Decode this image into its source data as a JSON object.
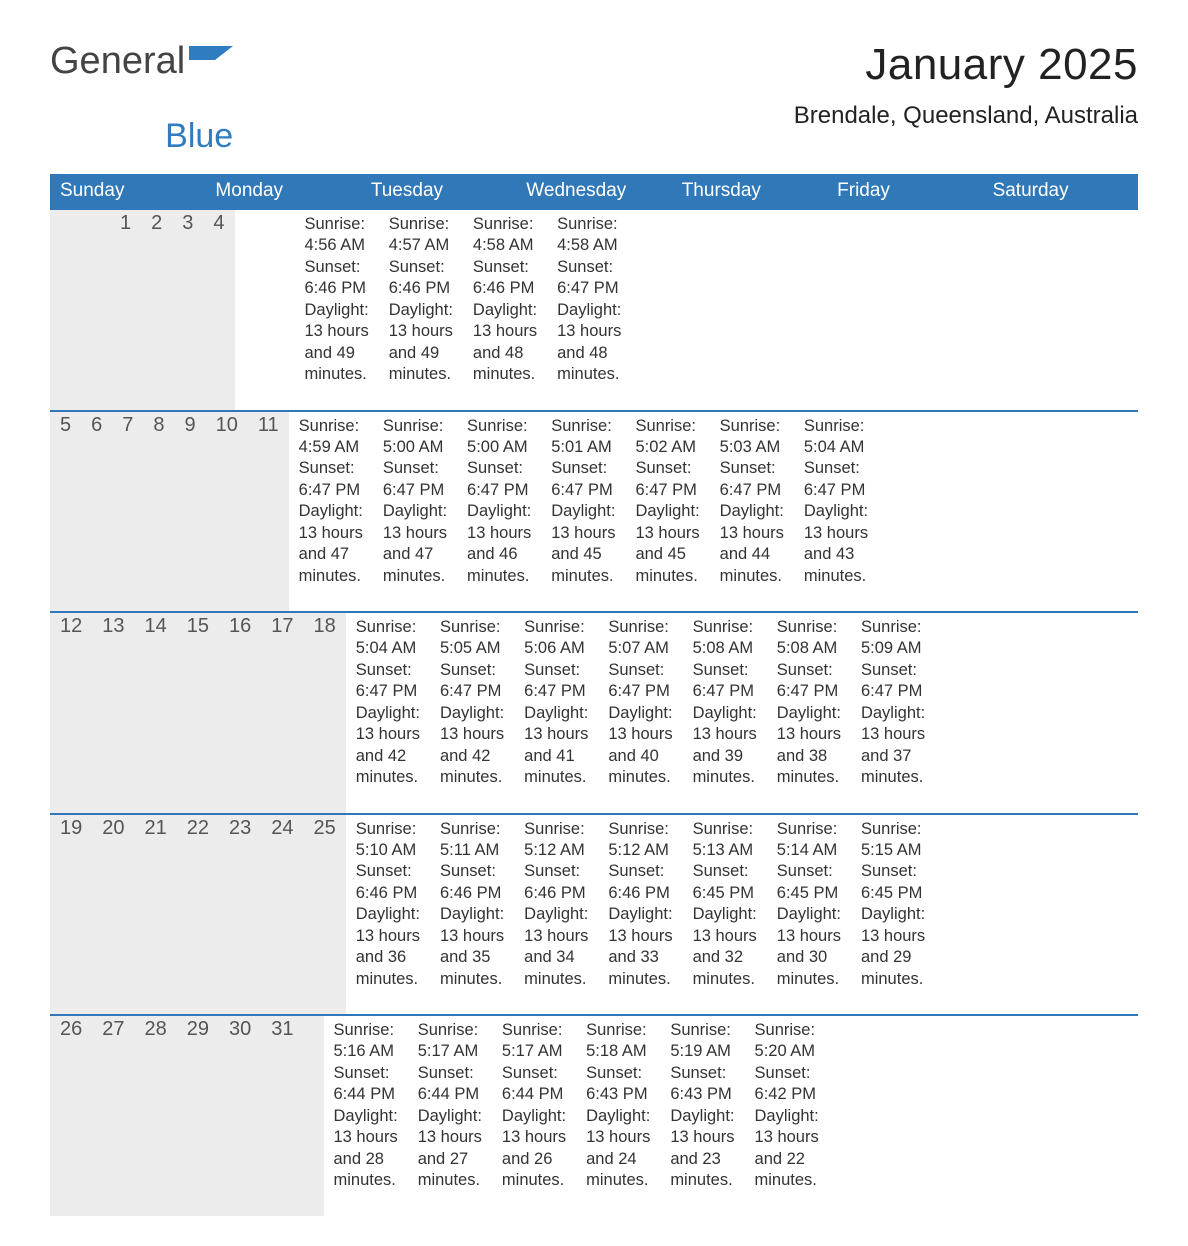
{
  "logo": {
    "text_general": "General",
    "text_blue": "Blue",
    "flag_color": "#2f7cc0"
  },
  "title": "January 2025",
  "location": "Brendale, Queensland, Australia",
  "colors": {
    "header_bg": "#3178b8",
    "header_text": "#ffffff",
    "daynum_bg": "#ececec",
    "divider": "#3178b8",
    "text": "#333333"
  },
  "day_headers": [
    "Sunday",
    "Monday",
    "Tuesday",
    "Wednesday",
    "Thursday",
    "Friday",
    "Saturday"
  ],
  "labels": {
    "sunrise": "Sunrise: ",
    "sunset": "Sunset: ",
    "daylight_prefix": "Daylight: "
  },
  "weeks": [
    [
      null,
      null,
      null,
      {
        "n": "1",
        "sunrise": "4:56 AM",
        "sunset": "6:46 PM",
        "daylight": "13 hours and 49 minutes."
      },
      {
        "n": "2",
        "sunrise": "4:57 AM",
        "sunset": "6:46 PM",
        "daylight": "13 hours and 49 minutes."
      },
      {
        "n": "3",
        "sunrise": "4:58 AM",
        "sunset": "6:46 PM",
        "daylight": "13 hours and 48 minutes."
      },
      {
        "n": "4",
        "sunrise": "4:58 AM",
        "sunset": "6:47 PM",
        "daylight": "13 hours and 48 minutes."
      }
    ],
    [
      {
        "n": "5",
        "sunrise": "4:59 AM",
        "sunset": "6:47 PM",
        "daylight": "13 hours and 47 minutes."
      },
      {
        "n": "6",
        "sunrise": "5:00 AM",
        "sunset": "6:47 PM",
        "daylight": "13 hours and 47 minutes."
      },
      {
        "n": "7",
        "sunrise": "5:00 AM",
        "sunset": "6:47 PM",
        "daylight": "13 hours and 46 minutes."
      },
      {
        "n": "8",
        "sunrise": "5:01 AM",
        "sunset": "6:47 PM",
        "daylight": "13 hours and 45 minutes."
      },
      {
        "n": "9",
        "sunrise": "5:02 AM",
        "sunset": "6:47 PM",
        "daylight": "13 hours and 45 minutes."
      },
      {
        "n": "10",
        "sunrise": "5:03 AM",
        "sunset": "6:47 PM",
        "daylight": "13 hours and 44 minutes."
      },
      {
        "n": "11",
        "sunrise": "5:04 AM",
        "sunset": "6:47 PM",
        "daylight": "13 hours and 43 minutes."
      }
    ],
    [
      {
        "n": "12",
        "sunrise": "5:04 AM",
        "sunset": "6:47 PM",
        "daylight": "13 hours and 42 minutes."
      },
      {
        "n": "13",
        "sunrise": "5:05 AM",
        "sunset": "6:47 PM",
        "daylight": "13 hours and 42 minutes."
      },
      {
        "n": "14",
        "sunrise": "5:06 AM",
        "sunset": "6:47 PM",
        "daylight": "13 hours and 41 minutes."
      },
      {
        "n": "15",
        "sunrise": "5:07 AM",
        "sunset": "6:47 PM",
        "daylight": "13 hours and 40 minutes."
      },
      {
        "n": "16",
        "sunrise": "5:08 AM",
        "sunset": "6:47 PM",
        "daylight": "13 hours and 39 minutes."
      },
      {
        "n": "17",
        "sunrise": "5:08 AM",
        "sunset": "6:47 PM",
        "daylight": "13 hours and 38 minutes."
      },
      {
        "n": "18",
        "sunrise": "5:09 AM",
        "sunset": "6:47 PM",
        "daylight": "13 hours and 37 minutes."
      }
    ],
    [
      {
        "n": "19",
        "sunrise": "5:10 AM",
        "sunset": "6:46 PM",
        "daylight": "13 hours and 36 minutes."
      },
      {
        "n": "20",
        "sunrise": "5:11 AM",
        "sunset": "6:46 PM",
        "daylight": "13 hours and 35 minutes."
      },
      {
        "n": "21",
        "sunrise": "5:12 AM",
        "sunset": "6:46 PM",
        "daylight": "13 hours and 34 minutes."
      },
      {
        "n": "22",
        "sunrise": "5:12 AM",
        "sunset": "6:46 PM",
        "daylight": "13 hours and 33 minutes."
      },
      {
        "n": "23",
        "sunrise": "5:13 AM",
        "sunset": "6:45 PM",
        "daylight": "13 hours and 32 minutes."
      },
      {
        "n": "24",
        "sunrise": "5:14 AM",
        "sunset": "6:45 PM",
        "daylight": "13 hours and 30 minutes."
      },
      {
        "n": "25",
        "sunrise": "5:15 AM",
        "sunset": "6:45 PM",
        "daylight": "13 hours and 29 minutes."
      }
    ],
    [
      {
        "n": "26",
        "sunrise": "5:16 AM",
        "sunset": "6:44 PM",
        "daylight": "13 hours and 28 minutes."
      },
      {
        "n": "27",
        "sunrise": "5:17 AM",
        "sunset": "6:44 PM",
        "daylight": "13 hours and 27 minutes."
      },
      {
        "n": "28",
        "sunrise": "5:17 AM",
        "sunset": "6:44 PM",
        "daylight": "13 hours and 26 minutes."
      },
      {
        "n": "29",
        "sunrise": "5:18 AM",
        "sunset": "6:43 PM",
        "daylight": "13 hours and 24 minutes."
      },
      {
        "n": "30",
        "sunrise": "5:19 AM",
        "sunset": "6:43 PM",
        "daylight": "13 hours and 23 minutes."
      },
      {
        "n": "31",
        "sunrise": "5:20 AM",
        "sunset": "6:42 PM",
        "daylight": "13 hours and 22 minutes."
      },
      null
    ]
  ]
}
